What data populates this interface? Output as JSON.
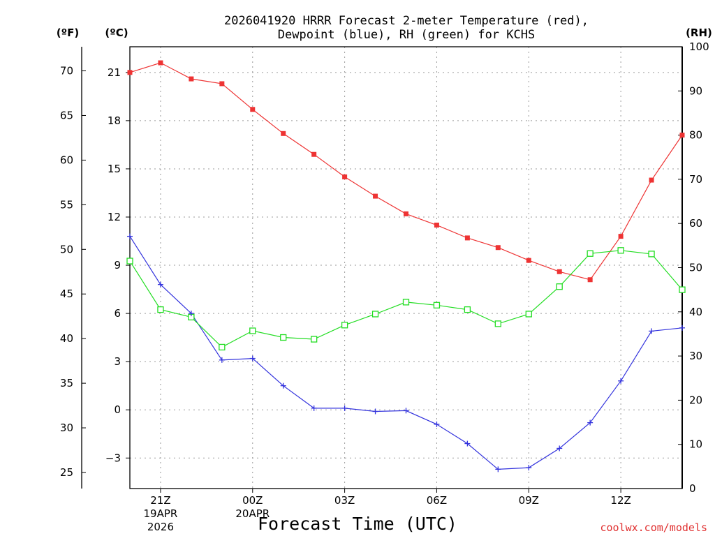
{
  "title_line1": "2026041920 HRRR Forecast 2-meter Temperature (red),",
  "title_line2": "Dewpoint (blue), RH (green) for KCHS",
  "units": {
    "fahrenheit": "(ºF)",
    "celsius": "(ºC)",
    "rh": "(RH)"
  },
  "x_title": "Forecast Time (UTC)",
  "credit": "coolwx.com/models",
  "colors": {
    "temperature": "#ee3333",
    "dewpoint": "#3333dd",
    "rh": "#22dd22"
  },
  "chart_data": {
    "type": "line",
    "title": "2026041920 HRRR Forecast 2-meter Temperature (red), Dewpoint (blue), RH (green) for KCHS",
    "xlabel": "Forecast Time (UTC)",
    "x_hours": [
      20,
      21,
      22,
      23,
      24,
      25,
      26,
      27,
      28,
      29,
      30,
      31,
      32,
      33,
      34,
      35,
      36,
      37,
      38
    ],
    "xlim": [
      20,
      38
    ],
    "x_ticks": [
      {
        "hour": 21,
        "label": "21Z",
        "date": "19APR",
        "year": "2026"
      },
      {
        "hour": 24,
        "label": "00Z",
        "date": "20APR",
        "year": ""
      },
      {
        "hour": 27,
        "label": "03Z",
        "date": "",
        "year": ""
      },
      {
        "hour": 30,
        "label": "06Z",
        "date": "",
        "year": ""
      },
      {
        "hour": 33,
        "label": "09Z",
        "date": "",
        "year": ""
      },
      {
        "hour": 36,
        "label": "12Z",
        "date": "",
        "year": ""
      }
    ],
    "celsius_axis": {
      "ylim": [
        -4.9,
        22.6
      ],
      "ticks": [
        -3,
        0,
        3,
        6,
        9,
        12,
        15,
        18,
        21
      ]
    },
    "fahrenheit_axis": {
      "ylim": [
        23.2,
        72.7
      ],
      "ticks": [
        25,
        30,
        35,
        40,
        45,
        50,
        55,
        60,
        65,
        70
      ]
    },
    "rh_axis": {
      "ylim": [
        0,
        100
      ],
      "ticks": [
        0,
        10,
        20,
        30,
        40,
        50,
        60,
        70,
        80,
        90,
        100
      ]
    },
    "series": [
      {
        "name": "Temperature",
        "unit": "°C",
        "marker": "filled-square",
        "values": [
          21.0,
          21.6,
          20.6,
          20.3,
          18.7,
          17.2,
          15.9,
          14.5,
          13.3,
          12.2,
          11.5,
          10.7,
          10.1,
          9.3,
          8.6,
          8.1,
          10.8,
          14.3,
          17.1
        ]
      },
      {
        "name": "Dewpoint",
        "unit": "°C",
        "marker": "plus",
        "values": [
          10.8,
          7.8,
          6.0,
          3.1,
          3.2,
          1.5,
          0.1,
          0.1,
          -0.1,
          -0.05,
          -0.9,
          -2.1,
          -3.7,
          -3.6,
          -2.4,
          -0.8,
          1.8,
          4.9,
          5.1
        ]
      },
      {
        "name": "RH",
        "unit": "%",
        "marker": "open-square",
        "values": [
          51.5,
          40.5,
          38.8,
          32.0,
          35.7,
          34.2,
          33.8,
          37.0,
          39.5,
          42.2,
          41.5,
          40.5,
          37.3,
          39.5,
          45.7,
          53.2,
          53.9,
          53.1,
          45.0
        ]
      }
    ]
  }
}
